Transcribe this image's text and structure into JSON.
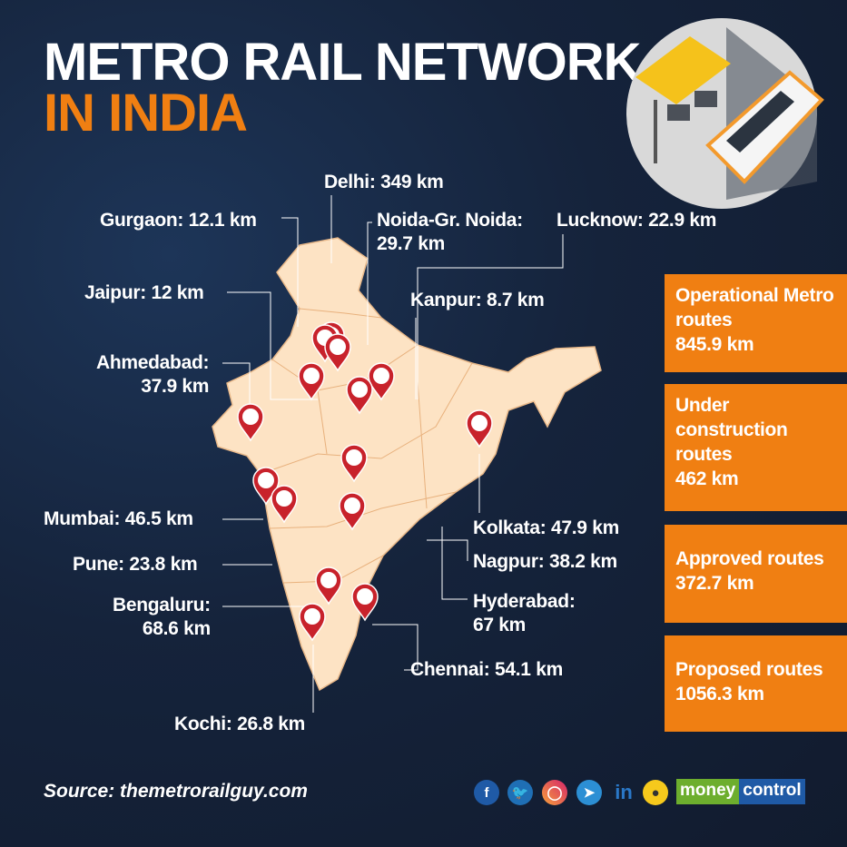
{
  "title": {
    "line1": "METRO RAIL NETWORK",
    "line2": "IN INDIA"
  },
  "cities": [
    {
      "name": "Delhi:",
      "value": "349 km"
    },
    {
      "name": "Gurgaon:",
      "value": "12.1 km"
    },
    {
      "name": "Noida-Gr. Noida:",
      "value": "29.7 km"
    },
    {
      "name": "Lucknow:",
      "value": "22.9 km"
    },
    {
      "name": "Jaipur:",
      "value": "12 km"
    },
    {
      "name": "Kanpur:",
      "value": "8.7 km"
    },
    {
      "name": "Ahmedabad:",
      "value": "37.9 km"
    },
    {
      "name": "Mumbai:",
      "value": "46.5 km"
    },
    {
      "name": "Kolkata:",
      "value": "47.9 km"
    },
    {
      "name": "Pune:",
      "value": "23.8 km"
    },
    {
      "name": "Nagpur:",
      "value": "38.2 km"
    },
    {
      "name": "Bengaluru:",
      "value": "68.6 km"
    },
    {
      "name": "Hyderabad:",
      "value": "67 km"
    },
    {
      "name": "Chennai:",
      "value": "54.1 km"
    },
    {
      "name": "Kochi:",
      "value": "26.8 km"
    }
  ],
  "summary": [
    {
      "label": "Operational Metro routes",
      "value": "845.9 km"
    },
    {
      "label": "Under construction routes",
      "value": "462 km"
    },
    {
      "label": "Approved routes",
      "value": "372.7 km"
    },
    {
      "label": "Proposed routes",
      "value": "1056.3 km"
    }
  ],
  "source": "Source: themetrorailguy.com",
  "social": {
    "icons": [
      "facebook-icon",
      "twitter-icon",
      "instagram-icon",
      "telegram-icon",
      "linkedin-icon",
      "koo-icon"
    ],
    "facebook": "f",
    "linkedin": "in"
  },
  "brand": {
    "part1": "money",
    "part2": "control"
  },
  "colors": {
    "accent": "#f07f12",
    "map": "#fde3c4",
    "pin": "#c8222b",
    "background": "#15233b"
  }
}
